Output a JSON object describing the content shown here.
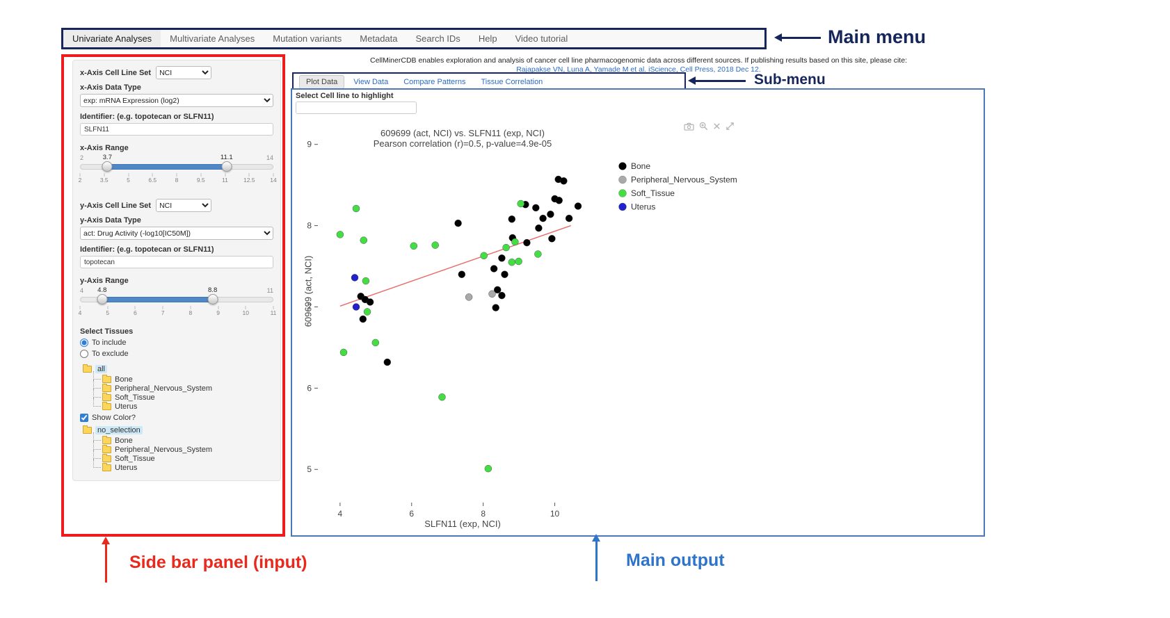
{
  "colors": {
    "annotation_navy": "#16265a",
    "annotation_red": "#e8291c",
    "annotation_blue": "#2e74c9",
    "main_output_border": "#4a77b8",
    "sidebar_border": "#ee1c1c",
    "link_blue": "#2a6bc6",
    "slider_bar_blue": "#5087c7",
    "tissue_bone": "#000000",
    "tissue_pns": "#a9a9a9",
    "tissue_soft": "#44dd44",
    "tissue_uterus": "#2222cc"
  },
  "main_menu": {
    "items": [
      {
        "label": "Univariate Analyses",
        "active": true
      },
      {
        "label": "Multivariate Analyses",
        "active": false
      },
      {
        "label": "Mutation variants",
        "active": false
      },
      {
        "label": "Metadata",
        "active": false
      },
      {
        "label": "Search IDs",
        "active": false
      },
      {
        "label": "Help",
        "active": false
      },
      {
        "label": "Video tutorial",
        "active": false
      }
    ]
  },
  "annotations": {
    "main_menu": "Main menu",
    "sub_menu": "Sub-menu",
    "sidebar": "Side bar panel (input)",
    "main_output": "Main output"
  },
  "citation": {
    "text": "CellMinerCDB enables exploration and analysis of cancer cell line pharmacogenomic data across different sources. If publishing results based on this site, please cite:",
    "link": "Rajapakse VN, Luna A, Yamade M et al. iScience, Cell Press, 2018 Dec 12."
  },
  "sidebar": {
    "x_axis": {
      "cell_line_set_label": "x-Axis Cell Line Set",
      "cell_line_set_value": "NCI",
      "data_type_label": "x-Axis Data Type",
      "data_type_value": "exp: mRNA Expression (log2)",
      "identifier_label": "Identifier: (e.g. topotecan or SLFN11)",
      "identifier_value": "SLFN11",
      "range": {
        "label": "x-Axis Range",
        "min": 2,
        "max": 14,
        "from": "3.7",
        "to": "11.1",
        "ticks": [
          "2",
          "3.5",
          "5",
          "6.5",
          "8",
          "9.5",
          "11",
          "12.5",
          "14"
        ]
      }
    },
    "y_axis": {
      "cell_line_set_label": "y-Axis Cell Line Set",
      "cell_line_set_value": "NCI",
      "data_type_label": "y-Axis Data Type",
      "data_type_value": "act: Drug Activity (-log10[IC50M])",
      "identifier_label": "Identifier: (e.g. topotecan or SLFN11)",
      "identifier_value": "topotecan",
      "range": {
        "label": "y-Axis Range",
        "min": 4,
        "max": 11,
        "from": "4.8",
        "to": "8.8",
        "ticks": [
          "4",
          "5",
          "6",
          "7",
          "8",
          "9",
          "10",
          "11"
        ]
      }
    },
    "tissues": {
      "label": "Select Tissues",
      "radio_include": "To include",
      "radio_exclude": "To exclude",
      "include_selected": true,
      "tree_include": {
        "root": "all",
        "items": [
          "Bone",
          "Peripheral_Nervous_System",
          "Soft_Tissue",
          "Uterus"
        ]
      },
      "show_color_label": "Show Color?",
      "show_color_checked": true,
      "tree_color": {
        "root": "no_selection",
        "items": [
          "Bone",
          "Peripheral_Nervous_System",
          "Soft_Tissue",
          "Uterus"
        ]
      }
    }
  },
  "main": {
    "tabs": [
      {
        "label": "Plot Data",
        "active": true
      },
      {
        "label": "View Data",
        "active": false
      },
      {
        "label": "Compare Patterns",
        "active": false
      },
      {
        "label": "Tissue Correlation",
        "active": false
      }
    ],
    "highlight_label": "Select Cell line to highlight",
    "highlight_value": "",
    "modebar_icons": [
      "camera-icon",
      "zoom-in-icon",
      "close-icon",
      "autoscale-icon"
    ]
  },
  "chart_data": {
    "type": "scatter",
    "title": "609699 (act, NCI) vs. SLFN11 (exp, NCI)",
    "subtitle": "Pearson correlation (r)=0.5, p-value=4.9e-05",
    "xlabel": "SLFN11 (exp, NCI)",
    "ylabel": "609699 (act, NCI)",
    "xlim": [
      3.4,
      11.0
    ],
    "ylim": [
      4.6,
      9.1
    ],
    "xticks": [
      4,
      6,
      8,
      10
    ],
    "yticks": [
      5,
      6,
      7,
      8,
      9
    ],
    "grid": false,
    "legend_position": "right",
    "series": [
      {
        "name": "Bone",
        "color": "#000000",
        "points": [
          [
            10.1,
            8.57
          ],
          [
            10.25,
            8.55
          ],
          [
            10.0,
            8.33
          ],
          [
            10.12,
            8.31
          ],
          [
            10.65,
            8.24
          ],
          [
            9.18,
            8.26
          ],
          [
            9.47,
            8.22
          ],
          [
            9.55,
            7.97
          ],
          [
            7.3,
            8.03
          ],
          [
            8.8,
            8.08
          ],
          [
            9.67,
            8.09
          ],
          [
            10.4,
            8.09
          ],
          [
            9.88,
            8.14
          ],
          [
            8.82,
            7.85
          ],
          [
            9.22,
            7.79
          ],
          [
            9.92,
            7.84
          ],
          [
            8.52,
            7.6
          ],
          [
            8.3,
            7.47
          ],
          [
            8.6,
            7.4
          ],
          [
            7.4,
            7.4
          ],
          [
            8.4,
            7.21
          ],
          [
            8.52,
            7.14
          ],
          [
            8.35,
            6.99
          ],
          [
            4.58,
            7.13
          ],
          [
            4.7,
            7.09
          ],
          [
            4.84,
            7.06
          ],
          [
            4.64,
            6.85
          ],
          [
            5.32,
            6.32
          ]
        ]
      },
      {
        "name": "Peripheral_Nervous_System",
        "color": "#a9a9a9",
        "points": [
          [
            7.6,
            7.12
          ],
          [
            8.25,
            7.16
          ]
        ]
      },
      {
        "name": "Soft_Tissue",
        "color": "#44dd44",
        "points": [
          [
            4.45,
            8.21
          ],
          [
            4.0,
            7.89
          ],
          [
            4.66,
            7.82
          ],
          [
            6.06,
            7.75
          ],
          [
            6.66,
            7.76
          ],
          [
            9.05,
            8.27
          ],
          [
            8.89,
            7.8
          ],
          [
            8.64,
            7.73
          ],
          [
            8.99,
            7.56
          ],
          [
            9.53,
            7.65
          ],
          [
            8.02,
            7.63
          ],
          [
            8.8,
            7.55
          ],
          [
            4.72,
            7.32
          ],
          [
            4.76,
            6.94
          ],
          [
            4.99,
            6.56
          ],
          [
            4.1,
            6.44
          ],
          [
            6.85,
            5.89
          ],
          [
            8.14,
            5.01
          ]
        ]
      },
      {
        "name": "Uterus",
        "color": "#2222cc",
        "points": [
          [
            4.41,
            7.36
          ],
          [
            4.45,
            7.0
          ]
        ]
      }
    ],
    "regression": {
      "x1": 4.0,
      "y1": 7.01,
      "x2": 10.45,
      "y2": 8.0,
      "color": "#e86a6a"
    }
  }
}
